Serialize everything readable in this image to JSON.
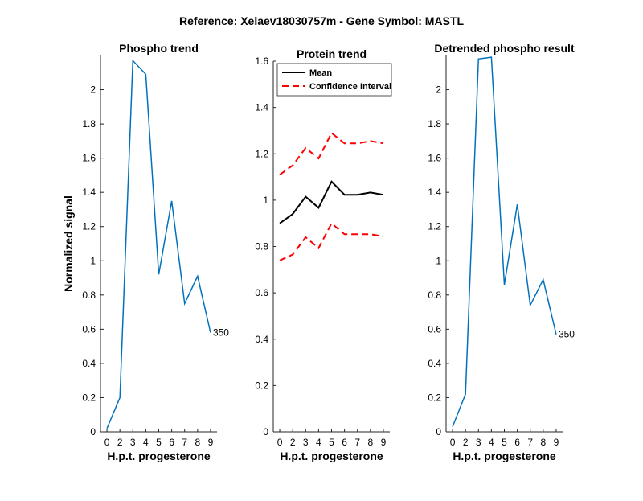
{
  "figure": {
    "title": "Reference:  Xelaev18030757m - Gene Symbol:  MASTL"
  },
  "chart_data": [
    {
      "type": "line",
      "title": "Phospho trend",
      "xlabel": "H.p.t. progesterone",
      "ylabel": "Normalized signal",
      "x_ticks": [
        0,
        2,
        3,
        4,
        5,
        6,
        7,
        8,
        9
      ],
      "ylim": [
        0,
        2.2
      ],
      "y_ticks": [
        0,
        0.2,
        0.4,
        0.6,
        0.8,
        1,
        1.2,
        1.4,
        1.6,
        1.8,
        2
      ],
      "grid": false,
      "series": [
        {
          "color": "#0072BD",
          "values": [
            0.02,
            0.2,
            2.17,
            2.09,
            0.92,
            1.35,
            0.75,
            0.91,
            0.58
          ]
        }
      ],
      "annotations": [
        {
          "text": "350",
          "at_index": 8
        }
      ]
    },
    {
      "type": "line",
      "title": "Protein trend",
      "xlabel": "H.p.t. progesterone",
      "ylabel": "",
      "x_ticks": [
        0,
        2,
        3,
        4,
        5,
        6,
        7,
        8,
        9
      ],
      "ylim": [
        0,
        1.6
      ],
      "y_ticks": [
        0,
        0.2,
        0.4,
        0.6,
        0.8,
        1,
        1.2,
        1.4,
        1.6
      ],
      "grid": false,
      "legend": {
        "placement": "top-left"
      },
      "series": [
        {
          "name": "Mean",
          "color": "#000000",
          "style": "solid",
          "values": [
            0.9,
            0.94,
            1.015,
            0.967,
            1.08,
            1.023,
            1.023,
            1.033,
            1.023
          ]
        },
        {
          "name": "Confidence Interval",
          "color": "#FF0000",
          "style": "dashed",
          "values": [
            1.11,
            1.15,
            1.225,
            1.18,
            1.29,
            1.245,
            1.245,
            1.255,
            1.245
          ]
        },
        {
          "name": "",
          "color": "#FF0000",
          "style": "dashed",
          "values": [
            0.74,
            0.765,
            0.84,
            0.793,
            0.9,
            0.853,
            0.853,
            0.853,
            0.843
          ]
        }
      ]
    },
    {
      "type": "line",
      "title": "Detrended phospho result",
      "xlabel": "H.p.t. progesterone",
      "ylabel": "",
      "x_ticks": [
        0,
        2,
        3,
        4,
        5,
        6,
        7,
        8,
        9
      ],
      "ylim": [
        0,
        2.2
      ],
      "y_ticks": [
        0,
        0.2,
        0.4,
        0.6,
        0.8,
        1,
        1.2,
        1.4,
        1.6,
        1.8,
        2
      ],
      "grid": false,
      "series": [
        {
          "color": "#0072BD",
          "values": [
            0.03,
            0.22,
            2.18,
            2.19,
            0.86,
            1.33,
            0.74,
            0.89,
            0.57
          ]
        }
      ],
      "annotations": [
        {
          "text": "350",
          "at_index": 8
        }
      ]
    }
  ]
}
